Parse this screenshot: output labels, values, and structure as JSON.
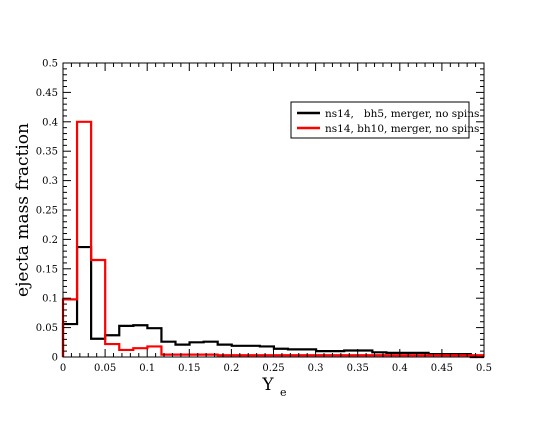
{
  "chart_data": {
    "type": "bar",
    "xlabel": "Y",
    "xlabel_sub": "e",
    "ylabel": "ejecta mass fraction",
    "xlim": [
      0,
      0.5
    ],
    "ylim": [
      0,
      0.5
    ],
    "xticks": [
      "0",
      "0.05",
      "0.1",
      "0.15",
      "0.2",
      "0.25",
      "0.3",
      "0.35",
      "0.4",
      "0.45",
      "0.5"
    ],
    "yticks": [
      "0",
      "0.05",
      "0.1",
      "0.15",
      "0.2",
      "0.25",
      "0.3",
      "0.35",
      "0.4",
      "0.45",
      "0.5"
    ],
    "grid": false,
    "legend_position": "top-right",
    "bin_width": 0.0167,
    "series": [
      {
        "name": "ns14,   bh5, merger, no spins",
        "color": "#000000",
        "values": [
          0.056,
          0.187,
          0.031,
          0.037,
          0.053,
          0.054,
          0.049,
          0.026,
          0.021,
          0.025,
          0.026,
          0.021,
          0.019,
          0.019,
          0.018,
          0.014,
          0.013,
          0.013,
          0.01,
          0.01,
          0.011,
          0.011,
          0.008,
          0.007,
          0.007,
          0.007,
          0.005,
          0.005,
          0.005,
          0.0
        ]
      },
      {
        "name": "ns14, bh10, merger, no spins",
        "color": "#ff0000",
        "values": [
          0.098,
          0.4,
          0.165,
          0.022,
          0.012,
          0.015,
          0.018,
          0.004,
          0.004,
          0.004,
          0.004,
          0.003,
          0.003,
          0.003,
          0.003,
          0.003,
          0.003,
          0.003,
          0.003,
          0.003,
          0.003,
          0.003,
          0.003,
          0.003,
          0.003,
          0.003,
          0.003,
          0.003,
          0.003,
          0.003
        ]
      }
    ]
  }
}
